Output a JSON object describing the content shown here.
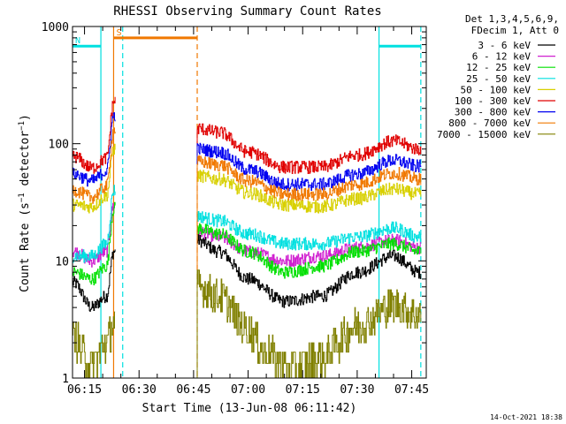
{
  "chart_data": {
    "type": "line",
    "title": "RHESSI Observing Summary Count Rates",
    "xlabel": "Start Time (13-Jun-08 06:11:42)",
    "ylabel_parts": [
      "Count Rate (s",
      "−1",
      " detector",
      "−1",
      ")"
    ],
    "y_scale": "log",
    "ylim": [
      1,
      1000
    ],
    "y_ticks": [
      {
        "value": 1,
        "label": "1"
      },
      {
        "value": 10,
        "label": "10"
      },
      {
        "value": 100,
        "label": "100"
      },
      {
        "value": 1000,
        "label": "1000"
      }
    ],
    "xlim": [
      "06:11:42",
      "07:49:00"
    ],
    "x_ticks": [
      {
        "time": "06:15",
        "label": "06:15"
      },
      {
        "time": "06:30",
        "label": "06:30"
      },
      {
        "time": "06:45",
        "label": "06:45"
      },
      {
        "time": "07:00",
        "label": "07:00"
      },
      {
        "time": "07:15",
        "label": "07:15"
      },
      {
        "time": "07:30",
        "label": "07:30"
      },
      {
        "time": "07:45",
        "label": "07:45"
      }
    ],
    "legend_header": [
      "Det 1,3,4,5,6,9,",
      "FDecim 1, Att 0"
    ],
    "legend_placement": "right",
    "segments": [
      [
        "06:11:42",
        "06:23:30"
      ],
      [
        "06:46:00",
        "07:47:30"
      ]
    ],
    "series": [
      {
        "name": "3 - 6 keV",
        "color": "#000000",
        "points": [
          [
            "06:12",
            "6.5"
          ],
          [
            "06:17",
            "4"
          ],
          [
            "06:21",
            "5"
          ],
          [
            "06:23",
            "12"
          ],
          [
            "06:46",
            "15"
          ],
          [
            "06:52",
            "12"
          ],
          [
            "07:00",
            "7"
          ],
          [
            "07:10",
            "4.5"
          ],
          [
            "07:20",
            "5"
          ],
          [
            "07:30",
            "8"
          ],
          [
            "07:40",
            "11"
          ],
          [
            "07:47",
            "8"
          ]
        ]
      },
      {
        "name": "6 - 12 keV",
        "color": "#d020d0",
        "points": [
          [
            "06:12",
            "12"
          ],
          [
            "06:17",
            "10"
          ],
          [
            "06:21",
            "12"
          ],
          [
            "06:23",
            "30"
          ],
          [
            "06:46",
            "18"
          ],
          [
            "06:52",
            "16"
          ],
          [
            "07:00",
            "12"
          ],
          [
            "07:10",
            "10"
          ],
          [
            "07:20",
            "11"
          ],
          [
            "07:30",
            "13"
          ],
          [
            "07:40",
            "15"
          ],
          [
            "07:47",
            "13"
          ]
        ]
      },
      {
        "name": "12 - 25 keV",
        "color": "#00e000",
        "points": [
          [
            "06:12",
            "8"
          ],
          [
            "06:17",
            "7"
          ],
          [
            "06:21",
            "9"
          ],
          [
            "06:23",
            "28"
          ],
          [
            "06:46",
            "19"
          ],
          [
            "06:52",
            "17"
          ],
          [
            "07:00",
            "12"
          ],
          [
            "07:10",
            "8"
          ],
          [
            "07:20",
            "9"
          ],
          [
            "07:30",
            "12"
          ],
          [
            "07:40",
            "14"
          ],
          [
            "07:47",
            "12"
          ]
        ]
      },
      {
        "name": "25 - 50 keV",
        "color": "#00e0e0",
        "points": [
          [
            "06:12",
            "11"
          ],
          [
            "06:17",
            "11"
          ],
          [
            "06:21",
            "14"
          ],
          [
            "06:23",
            "40"
          ],
          [
            "06:46",
            "24"
          ],
          [
            "06:52",
            "22"
          ],
          [
            "07:00",
            "17"
          ],
          [
            "07:10",
            "14"
          ],
          [
            "07:20",
            "14"
          ],
          [
            "07:30",
            "16"
          ],
          [
            "07:40",
            "19"
          ],
          [
            "07:47",
            "16"
          ]
        ]
      },
      {
        "name": "50 - 100 keV",
        "color": "#d8d000",
        "points": [
          [
            "06:12",
            "30"
          ],
          [
            "06:17",
            "29"
          ],
          [
            "06:21",
            "36"
          ],
          [
            "06:23",
            "90"
          ],
          [
            "06:46",
            "53"
          ],
          [
            "06:52",
            "50"
          ],
          [
            "07:00",
            "38"
          ],
          [
            "07:10",
            "30"
          ],
          [
            "07:20",
            "29"
          ],
          [
            "07:30",
            "34"
          ],
          [
            "07:40",
            "41"
          ],
          [
            "07:47",
            "37"
          ]
        ]
      },
      {
        "name": "100 - 300 keV",
        "color": "#e00000",
        "points": [
          [
            "06:12",
            "78"
          ],
          [
            "06:17",
            "62"
          ],
          [
            "06:21",
            "75"
          ],
          [
            "06:23",
            "230"
          ],
          [
            "06:46",
            "135"
          ],
          [
            "06:52",
            "125"
          ],
          [
            "07:00",
            "85"
          ],
          [
            "07:10",
            "63"
          ],
          [
            "07:20",
            "63"
          ],
          [
            "07:30",
            "80"
          ],
          [
            "07:40",
            "105"
          ],
          [
            "07:47",
            "90"
          ]
        ]
      },
      {
        "name": "300 - 800 keV",
        "color": "#0000f0",
        "points": [
          [
            "06:12",
            "55"
          ],
          [
            "06:17",
            "48"
          ],
          [
            "06:21",
            "58"
          ],
          [
            "06:23",
            "175"
          ],
          [
            "06:46",
            "90"
          ],
          [
            "06:52",
            "85"
          ],
          [
            "07:00",
            "60"
          ],
          [
            "07:10",
            "45"
          ],
          [
            "07:20",
            "45"
          ],
          [
            "07:30",
            "55"
          ],
          [
            "07:40",
            "72"
          ],
          [
            "07:47",
            "64"
          ]
        ]
      },
      {
        "name": "800 - 7000 keV",
        "color": "#f07800",
        "points": [
          [
            "06:12",
            "40"
          ],
          [
            "06:17",
            "35"
          ],
          [
            "06:21",
            "43"
          ],
          [
            "06:23",
            "130"
          ],
          [
            "06:46",
            "70"
          ],
          [
            "06:52",
            "66"
          ],
          [
            "07:00",
            "48"
          ],
          [
            "07:10",
            "37"
          ],
          [
            "07:20",
            "37"
          ],
          [
            "07:30",
            "45"
          ],
          [
            "07:40",
            "56"
          ],
          [
            "07:47",
            "50"
          ]
        ]
      },
      {
        "name": "7000 - 15000 keV",
        "color": "#808000",
        "points": [
          [
            "06:12",
            "2.2"
          ],
          [
            "06:17",
            "1.3"
          ],
          [
            "06:21",
            "2.0"
          ],
          [
            "06:23",
            "3"
          ],
          [
            "06:46",
            "6"
          ],
          [
            "06:52",
            "5"
          ],
          [
            "07:00",
            "2.6"
          ],
          [
            "07:05",
            "1.6"
          ],
          [
            "07:12",
            "1.2"
          ],
          [
            "07:20",
            "1.5"
          ],
          [
            "07:30",
            "2.8"
          ],
          [
            "07:40",
            "4.2"
          ],
          [
            "07:47",
            "3.5"
          ]
        ]
      }
    ],
    "attenuator_bars": [
      {
        "label": "S",
        "color": "#f07800",
        "value": 800,
        "start": "06:23:00",
        "end": "06:46:00"
      },
      {
        "label": "N",
        "color": "#00e0e0",
        "value": 680,
        "start": "06:11:42",
        "end": "06:19:30"
      },
      {
        "label": "",
        "color": "#00e0e0",
        "value": 680,
        "start": "07:36:00",
        "end": "07:47:30"
      }
    ],
    "vertical_lines": [
      {
        "time": "06:19:30",
        "color": "#00e0e0",
        "style": "solid"
      },
      {
        "time": "06:23:00",
        "color": "#f07800",
        "style": "solid"
      },
      {
        "time": "06:25:30",
        "color": "#00e0e0",
        "style": "dashed"
      },
      {
        "time": "06:46:00",
        "color": "#f07800",
        "style": "dashed"
      },
      {
        "time": "07:36:00",
        "color": "#00e0e0",
        "style": "solid"
      },
      {
        "time": "07:47:30",
        "color": "#00e0e0",
        "style": "dashed"
      }
    ]
  },
  "footer_date": "14-Oct-2021 18:38"
}
